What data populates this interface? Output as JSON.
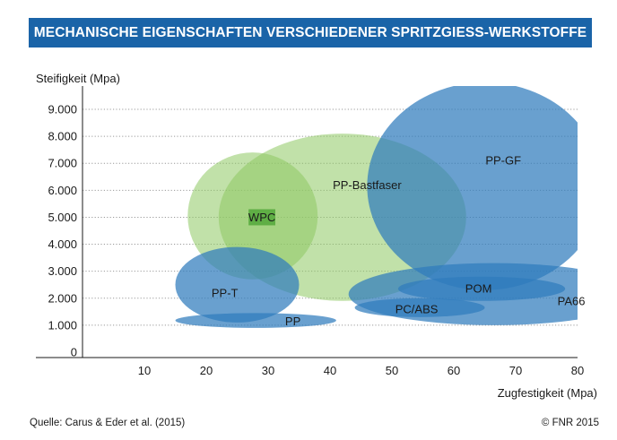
{
  "title": "MECHANISCHE EIGENSCHAFTEN VERSCHIEDENER SPRITZGIESS-WERKSTOFFE",
  "footer": {
    "source": "Quelle: Carus & Eder et al. (2015)",
    "copyright": "© FNR 2015"
  },
  "colors": {
    "title_bg": "#1a64a8",
    "blue": "#2f7bbd",
    "green": "#8ec863",
    "grid": "#9a9a9a"
  },
  "chart_data": {
    "type": "bubble-region",
    "xlabel": "Zugfestigkeit (Mpa)",
    "ylabel": "Steifigkeit (Mpa)",
    "xlim": [
      0,
      80
    ],
    "ylim": [
      0,
      10000
    ],
    "x_ticks": [
      {
        "value": 10,
        "label": "10"
      },
      {
        "value": 20,
        "label": "20"
      },
      {
        "value": 30,
        "label": "30"
      },
      {
        "value": 40,
        "label": "40"
      },
      {
        "value": 50,
        "label": "50"
      },
      {
        "value": 60,
        "label": "60"
      },
      {
        "value": 70,
        "label": "70"
      },
      {
        "value": 80,
        "label": "80"
      }
    ],
    "y_ticks": [
      {
        "value": 0,
        "label": "0"
      },
      {
        "value": 1000,
        "label": "1.000"
      },
      {
        "value": 2000,
        "label": "2.000"
      },
      {
        "value": 3000,
        "label": "3.000"
      },
      {
        "value": 4000,
        "label": "4.000"
      },
      {
        "value": 5000,
        "label": "5.000"
      },
      {
        "value": 6000,
        "label": "6.000"
      },
      {
        "value": 7000,
        "label": "7.000"
      },
      {
        "value": 8000,
        "label": "8.000"
      },
      {
        "value": 9000,
        "label": "9.000"
      }
    ],
    "grid": "horizontal-dotted",
    "regions": [
      {
        "name": "PP-Bastfaser",
        "color": "green",
        "x": [
          22,
          62
        ],
        "y": [
          1900,
          8100
        ],
        "label_at": [
          46,
          6200
        ]
      },
      {
        "name": "WPC",
        "color": "green",
        "x": [
          17,
          38
        ],
        "y": [
          2700,
          7400
        ],
        "label_at": [
          29,
          5000
        ],
        "label_bg": true
      },
      {
        "name": "PP-GF",
        "color": "blue",
        "x": [
          46,
          84
        ],
        "y": [
          2300,
          10000
        ],
        "label_at": [
          68,
          7100
        ]
      },
      {
        "name": "PP-T",
        "color": "blue",
        "x": [
          15,
          35
        ],
        "y": [
          1100,
          3900
        ],
        "label_at": [
          23,
          2200
        ]
      },
      {
        "name": "PP",
        "color": "blue",
        "x": [
          15,
          41
        ],
        "y": [
          900,
          1450
        ],
        "label_at": [
          34,
          1150
        ]
      },
      {
        "name": "PA66",
        "color": "blue",
        "x": [
          43,
          90
        ],
        "y": [
          1000,
          3300
        ],
        "label_at": [
          79,
          1900
        ]
      },
      {
        "name": "POM",
        "color": "blue",
        "x": [
          51,
          78
        ],
        "y": [
          1900,
          2800
        ],
        "label_at": [
          64,
          2350
        ]
      },
      {
        "name": "PC/ABS",
        "color": "blue",
        "x": [
          44,
          65
        ],
        "y": [
          1300,
          2000
        ],
        "label_at": [
          54,
          1600
        ]
      }
    ]
  }
}
